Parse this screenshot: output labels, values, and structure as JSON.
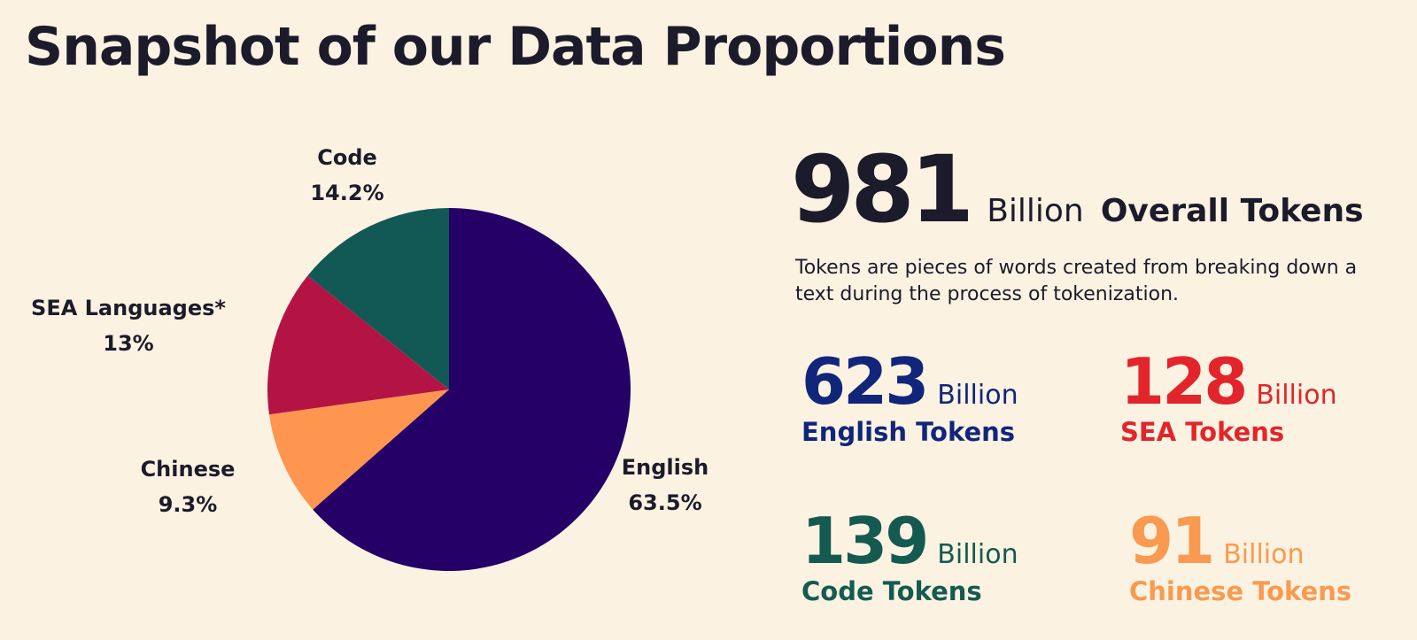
{
  "title": "Snapshot of our Data Proportions",
  "overall": {
    "value": "981",
    "unit": "Billion",
    "label": "Overall Tokens"
  },
  "description": "Tokens are pieces of words created from breaking down a text during the process of tokenization.",
  "stats": [
    {
      "value": "623",
      "unit": "Billion",
      "label": "English Tokens",
      "color": "#11267a"
    },
    {
      "value": "128",
      "unit": "Billion",
      "label": "SEA Tokens",
      "color": "#e3242b"
    },
    {
      "value": "139",
      "unit": "Billion",
      "label": "Code Tokens",
      "color": "#155a50"
    },
    {
      "value": "91",
      "unit": "Billion",
      "label": "Chinese Tokens",
      "color": "#f99a50"
    }
  ],
  "chart_data": {
    "type": "pie",
    "slices": [
      {
        "name": "English",
        "value": 63.5,
        "label": "63.5%",
        "color": "#250066"
      },
      {
        "name": "Chinese",
        "value": 9.3,
        "label": "9.3%",
        "color": "#ff9650"
      },
      {
        "name": "SEA Languages*",
        "value": 13,
        "label": "13%",
        "color": "#b41444"
      },
      {
        "name": "Code",
        "value": 14.2,
        "label": "14.2%",
        "color": "#125955"
      }
    ]
  }
}
